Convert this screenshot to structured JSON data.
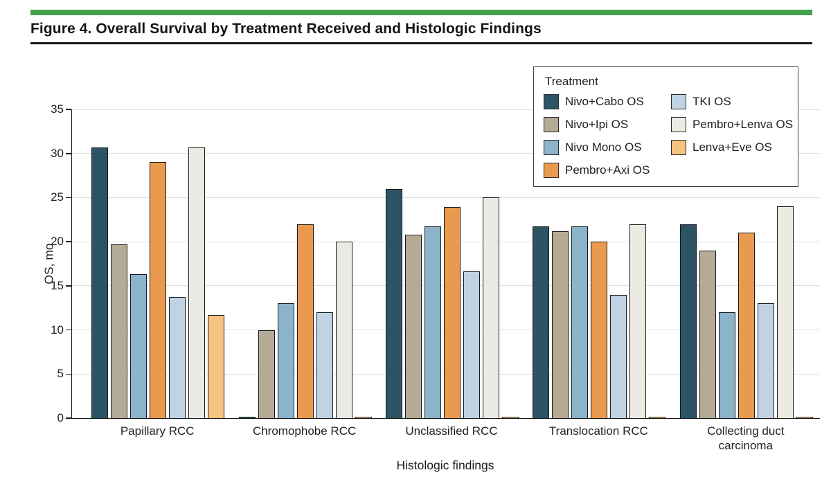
{
  "header": {
    "figure_title": "Figure 4. Overall Survival by Treatment Received and Histologic Findings",
    "accent_color": "#44a049",
    "rule_color": "#151515"
  },
  "chart_data": {
    "type": "bar",
    "title": "Overall Survival by Treatment Received and Histologic Findings",
    "xlabel": "Histologic findings",
    "ylabel": "OS, mo",
    "ylim": [
      0,
      35
    ],
    "yticks": [
      0,
      5,
      10,
      15,
      20,
      25,
      30,
      35
    ],
    "grid": "horizontal",
    "legend_title": "Treatment",
    "legend_position": "top-right-inside",
    "gridline_color": "#dedede",
    "bar_outline_color": "#191919",
    "categories": [
      "Papillary RCC",
      "Chromophobe RCC",
      "Unclassified RCC",
      "Translocation RCC",
      "Collecting duct carcinoma"
    ],
    "series": [
      {
        "name": "Nivo+Cabo OS",
        "color": "#2c5465",
        "values": [
          30.7,
          0.1,
          26.0,
          21.7,
          22.0
        ]
      },
      {
        "name": "Nivo+Ipi OS",
        "color": "#b4aa96",
        "values": [
          19.7,
          10.0,
          20.8,
          21.2,
          19.0
        ]
      },
      {
        "name": "Nivo Mono OS",
        "color": "#8bb3c9",
        "values": [
          16.3,
          13.0,
          21.7,
          21.7,
          12.0
        ]
      },
      {
        "name": "Pembro+Axi OS",
        "color": "#e99a4f",
        "values": [
          29.0,
          22.0,
          23.9,
          20.0,
          21.0
        ]
      },
      {
        "name": "TKI OS",
        "color": "#bfd3e3",
        "values": [
          13.7,
          12.0,
          16.6,
          14.0,
          13.0
        ]
      },
      {
        "name": "Pembro+Lenva OS",
        "color": "#ecebe3",
        "values": [
          30.7,
          20.0,
          25.0,
          22.0,
          24.0
        ]
      },
      {
        "name": "Lenva+Eve OS",
        "color": "#f7c380",
        "values": [
          11.7,
          0.1,
          0.1,
          0.1,
          0.1
        ]
      }
    ]
  }
}
